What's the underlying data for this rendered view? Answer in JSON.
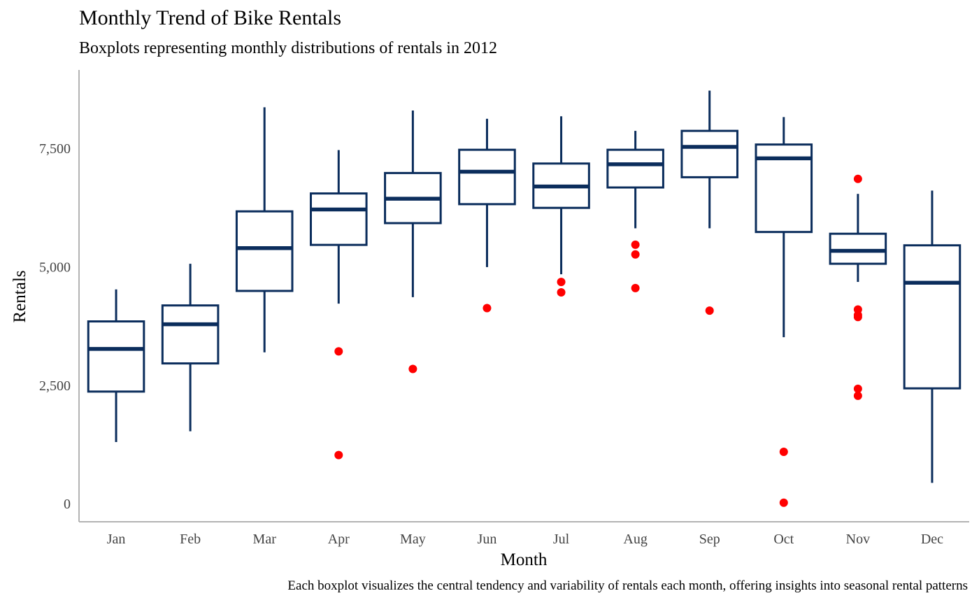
{
  "chart_data": {
    "type": "boxplot",
    "title": "Monthly Trend of Bike Rentals",
    "subtitle": "Boxplots representing monthly distributions of rentals in 2012",
    "caption": "Each boxplot visualizes the central tendency and variability of rentals each month, offering insights into seasonal rental patterns",
    "xlabel": "Month",
    "ylabel": "Rentals",
    "ylim": [
      -380,
      9150
    ],
    "yticks": [
      0,
      2500,
      5000,
      7500
    ],
    "ytick_labels": [
      "0",
      "2,500",
      "5,000",
      "7,500"
    ],
    "grid": false,
    "colors": {
      "box": "#0b2d5c",
      "outlier": "#ff0000",
      "axis": "#b3b3b3"
    },
    "categories": [
      "Jan",
      "Feb",
      "Mar",
      "Apr",
      "May",
      "Jun",
      "Jul",
      "Aug",
      "Sep",
      "Oct",
      "Nov",
      "Dec"
    ],
    "boxes": [
      {
        "min": 1301,
        "q1": 2366,
        "median": 3266,
        "q3": 3846,
        "max": 4521,
        "outliers": []
      },
      {
        "min": 1529,
        "q1": 2960,
        "median": 3786,
        "q3": 4183,
        "max": 5062,
        "outliers": []
      },
      {
        "min": 3194,
        "q1": 4489,
        "median": 5391,
        "q3": 6167,
        "max": 8362,
        "outliers": []
      },
      {
        "min": 4220,
        "q1": 5460,
        "median": 6206,
        "q3": 6545,
        "max": 7460,
        "outliers": [
          3214,
          1027
        ]
      },
      {
        "min": 4358,
        "q1": 5919,
        "median": 6434,
        "q3": 6976,
        "max": 8294,
        "outliers": [
          2843
        ]
      },
      {
        "min": 4991,
        "q1": 6319,
        "median": 7004,
        "q3": 7466,
        "max": 8120,
        "outliers": [
          4127
        ]
      },
      {
        "min": 4840,
        "q1": 6241,
        "median": 6692,
        "q3": 7176,
        "max": 8173,
        "outliers": [
          4678,
          4459
        ]
      },
      {
        "min": 5810,
        "q1": 6671,
        "median": 7160,
        "q3": 7466,
        "max": 7865,
        "outliers": [
          5463,
          5259,
          4549
        ]
      },
      {
        "min": 5810,
        "q1": 6887,
        "median": 7527,
        "q3": 7865,
        "max": 8714,
        "outliers": [
          4073
        ]
      },
      {
        "min": 3512,
        "q1": 5732,
        "median": 7285,
        "q3": 7577,
        "max": 8156,
        "outliers": [
          1096,
          22
        ]
      },
      {
        "min": 4679,
        "q1": 5062,
        "median": 5334,
        "q3": 5695,
        "max": 6536,
        "outliers": [
          6852,
          4097,
          3979,
          3939,
          2424,
          2277
        ]
      },
      {
        "min": 441,
        "q1": 2434,
        "median": 4662,
        "q3": 5451,
        "max": 6606,
        "outliers": []
      }
    ]
  }
}
